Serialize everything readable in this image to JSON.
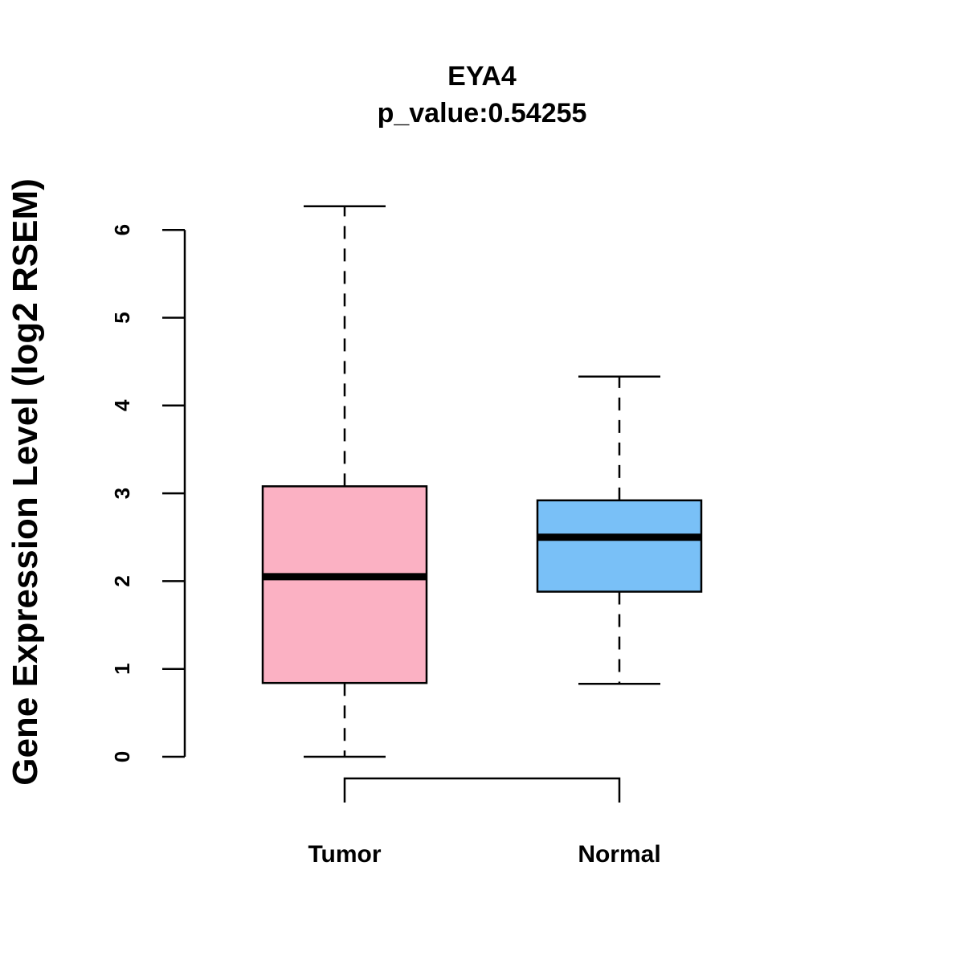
{
  "chart_data": {
    "type": "boxplot",
    "title": "EYA4",
    "subtitle": "p_value:0.54255",
    "xlabel": "",
    "ylabel": "Gene Expression Level (log2 RSEM)",
    "ylim": [
      0,
      6
    ],
    "yticks": [
      "0",
      "1",
      "2",
      "3",
      "4",
      "5",
      "6"
    ],
    "grid": false,
    "comparison_bracket": true,
    "categories": [
      "Tumor",
      "Normal"
    ],
    "series": [
      {
        "name": "Tumor",
        "color": "#FBB1C3",
        "min": 0.0,
        "q1": 0.84,
        "median": 2.05,
        "q3": 3.08,
        "max": 6.27
      },
      {
        "name": "Normal",
        "color": "#79C0F7",
        "min": 0.83,
        "q1": 1.88,
        "median": 2.5,
        "q3": 2.92,
        "max": 4.33
      }
    ]
  }
}
